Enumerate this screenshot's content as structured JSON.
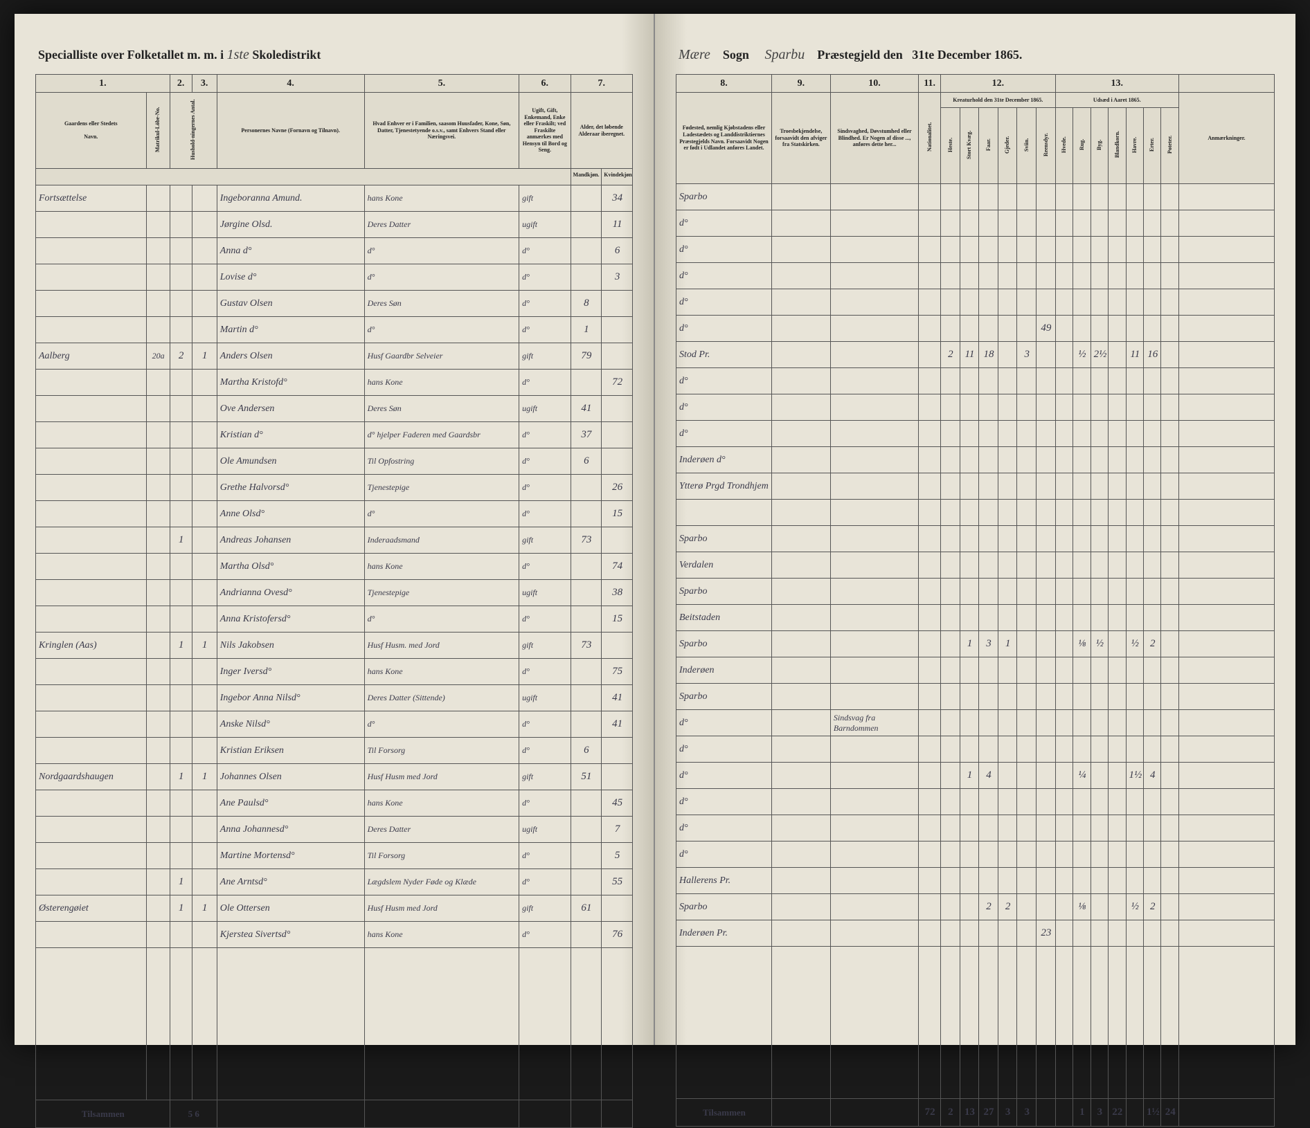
{
  "header": {
    "left_prefix": "Specialliste over Folketallet m. m. i",
    "school_no": "1ste",
    "school_label": "Skoledistrikt",
    "parish_value": "Mære",
    "parish_label": "Sogn",
    "deanery_value": "Sparbu",
    "deanery_label": "Præstegjeld den",
    "date": "31te December 1865."
  },
  "left_cols": {
    "c1": "1.",
    "c2": "2.",
    "c3": "3.",
    "c4": "4.",
    "c5": "5.",
    "c6": "6.",
    "c7": "7."
  },
  "right_cols": {
    "c8": "8.",
    "c9": "9.",
    "c10": "10.",
    "c11": "11.",
    "c12": "12.",
    "c13": "13."
  },
  "left_sub": {
    "farm": "Gaardens eller Stedets",
    "navn": "Navn.",
    "matr": "Matrikul-Löbe-No.",
    "hus": "Hushold-ningernes Antal.",
    "pers": "Personernes Navne (Fornavn og Tilnavn).",
    "stand": "Hvad Enhver er i Familien, saasom Huusfader, Kone, Søn, Datter, Tjenestetyende o.s.v., samt Enhvers Stand eller Næringsvei.",
    "civil": "Ugift, Gift, Enkemand, Enke eller Fraskilt; ved Fraskilte anmærkes med Hensyn til Bord og Seng.",
    "age": "Alder, det løbende Alderaar iberegnet.",
    "male": "Mandkjøn.",
    "female": "Kvindekjøn."
  },
  "right_sub": {
    "birthplace": "Fødested, nemlig Kjøbstadens eller Ladestædets og Landdistriktiernes Præstegjelds Navn. Forsaavidt Nogen er født i Udlandet anføres Landet.",
    "faith": "Troesbekjendelse, forsaavidt den afviger fra Statskirken.",
    "disability": "Sindsvaghed, Døvstumhed eller Blindhed. Er Nogen af disse ..., anføres dette her...",
    "nation": "Nationalitet.",
    "creatures": "Kreaturhold den 31te December 1865.",
    "sowing": "Udsæd i Aaret 1865.",
    "remarks": "Anmærkninger.",
    "heste": "Heste.",
    "stort": "Stort Kvæg.",
    "faar": "Faar.",
    "gjed": "Gjeder.",
    "svin": "Sviin.",
    "ren": "Reensdyr.",
    "hvede": "Hvede.",
    "rug": "Rug.",
    "byg": "Byg.",
    "bland": "Blandkorn.",
    "havre": "Havre.",
    "erter": "Erter.",
    "poteter": "Poteter."
  },
  "rows": [
    {
      "farm": "Fortsættelse",
      "m": "",
      "h": "",
      "name": "Ingeboranna Amund.",
      "rel": "hans Kone",
      "civ": "gift",
      "ma": "",
      "fa": "34",
      "bp": "Sparbo",
      "cr": [
        "",
        "",
        "",
        "",
        "",
        ""
      ],
      "sw": [
        "",
        "",
        "",
        "",
        "",
        "",
        ""
      ]
    },
    {
      "farm": "",
      "m": "",
      "h": "",
      "name": "Jørgine Olsd.",
      "rel": "Deres Datter",
      "civ": "ugift",
      "ma": "",
      "fa": "11",
      "bp": "d°",
      "cr": [
        "",
        "",
        "",
        "",
        "",
        ""
      ],
      "sw": [
        "",
        "",
        "",
        "",
        "",
        "",
        ""
      ]
    },
    {
      "farm": "",
      "m": "",
      "h": "",
      "name": "Anna d°",
      "rel": "d°",
      "civ": "d°",
      "ma": "",
      "fa": "6",
      "bp": "d°",
      "cr": [
        "",
        "",
        "",
        "",
        "",
        ""
      ],
      "sw": [
        "",
        "",
        "",
        "",
        "",
        "",
        ""
      ]
    },
    {
      "farm": "",
      "m": "",
      "h": "",
      "name": "Lovise d°",
      "rel": "d°",
      "civ": "d°",
      "ma": "",
      "fa": "3",
      "bp": "d°",
      "cr": [
        "",
        "",
        "",
        "",
        "",
        ""
      ],
      "sw": [
        "",
        "",
        "",
        "",
        "",
        "",
        ""
      ]
    },
    {
      "farm": "",
      "m": "",
      "h": "",
      "name": "Gustav Olsen",
      "rel": "Deres Søn",
      "civ": "d°",
      "ma": "8",
      "fa": "",
      "bp": "d°",
      "cr": [
        "",
        "",
        "",
        "",
        "",
        ""
      ],
      "sw": [
        "",
        "",
        "",
        "",
        "",
        "",
        ""
      ]
    },
    {
      "farm": "",
      "m": "",
      "h": "",
      "name": "Martin d°",
      "rel": "d°",
      "civ": "d°",
      "ma": "1",
      "fa": "",
      "bp": "d°",
      "cr": [
        "",
        "",
        "",
        "",
        "",
        "49"
      ],
      "sw": [
        "",
        "",
        "",
        "",
        "",
        "",
        ""
      ]
    },
    {
      "farm": "Aalberg",
      "m": "20a",
      "h": "2 1",
      "name": "Anders Olsen",
      "rel": "Husf Gaardbr Selveier",
      "civ": "gift",
      "ma": "79",
      "fa": "",
      "bp": "Stod Pr.",
      "cr": [
        "2",
        "11",
        "18",
        "",
        "3",
        ""
      ],
      "sw": [
        "",
        "½",
        "2½",
        "",
        "11",
        "16",
        ""
      ]
    },
    {
      "farm": "",
      "m": "",
      "h": "",
      "name": "Martha Kristofd°",
      "rel": "hans Kone",
      "civ": "d°",
      "ma": "",
      "fa": "72",
      "bp": "d°",
      "cr": [
        "",
        "",
        "",
        "",
        "",
        ""
      ],
      "sw": [
        "",
        "",
        "",
        "",
        "",
        "",
        ""
      ]
    },
    {
      "farm": "",
      "m": "",
      "h": "",
      "name": "Ove Andersen",
      "rel": "Deres Søn",
      "civ": "ugift",
      "ma": "41",
      "fa": "",
      "bp": "d°",
      "cr": [
        "",
        "",
        "",
        "",
        "",
        ""
      ],
      "sw": [
        "",
        "",
        "",
        "",
        "",
        "",
        ""
      ]
    },
    {
      "farm": "",
      "m": "",
      "h": "",
      "name": "Kristian d°",
      "rel": "d° hjelper Faderen med Gaardsbr",
      "civ": "d°",
      "ma": "37",
      "fa": "",
      "bp": "d°",
      "cr": [
        "",
        "",
        "",
        "",
        "",
        ""
      ],
      "sw": [
        "",
        "",
        "",
        "",
        "",
        "",
        ""
      ]
    },
    {
      "farm": "",
      "m": "",
      "h": "",
      "name": "Ole Amundsen",
      "rel": "Til Opfostring",
      "civ": "d°",
      "ma": "6",
      "fa": "",
      "bp": "Inderøen d°",
      "cr": [
        "",
        "",
        "",
        "",
        "",
        ""
      ],
      "sw": [
        "",
        "",
        "",
        "",
        "",
        "",
        ""
      ]
    },
    {
      "farm": "",
      "m": "",
      "h": "",
      "name": "Grethe Halvorsd°",
      "rel": "Tjenestepige",
      "civ": "d°",
      "ma": "",
      "fa": "26",
      "bp": "Ytterø Prgd Trondhjem",
      "cr": [
        "",
        "",
        "",
        "",
        "",
        ""
      ],
      "sw": [
        "",
        "",
        "",
        "",
        "",
        "",
        ""
      ]
    },
    {
      "farm": "",
      "m": "",
      "h": "",
      "name": "Anne Olsd°",
      "rel": "d°",
      "civ": "d°",
      "ma": "",
      "fa": "15",
      "bp": "",
      "cr": [
        "",
        "",
        "",
        "",
        "",
        ""
      ],
      "sw": [
        "",
        "",
        "",
        "",
        "",
        "",
        ""
      ]
    },
    {
      "farm": "",
      "m": "",
      "h": "1",
      "name": "Andreas Johansen",
      "rel": "Inderaadsmand",
      "civ": "gift",
      "ma": "73",
      "fa": "",
      "bp": "Sparbo",
      "cr": [
        "",
        "",
        "",
        "",
        "",
        ""
      ],
      "sw": [
        "",
        "",
        "",
        "",
        "",
        "",
        ""
      ]
    },
    {
      "farm": "",
      "m": "",
      "h": "",
      "name": "Martha Olsd°",
      "rel": "hans Kone",
      "civ": "d°",
      "ma": "",
      "fa": "74",
      "bp": "Verdalen",
      "cr": [
        "",
        "",
        "",
        "",
        "",
        ""
      ],
      "sw": [
        "",
        "",
        "",
        "",
        "",
        "",
        ""
      ]
    },
    {
      "farm": "",
      "m": "",
      "h": "",
      "name": "Andrianna Ovesd°",
      "rel": "Tjenestepige",
      "civ": "ugift",
      "ma": "",
      "fa": "38",
      "bp": "Sparbo",
      "cr": [
        "",
        "",
        "",
        "",
        "",
        ""
      ],
      "sw": [
        "",
        "",
        "",
        "",
        "",
        "",
        ""
      ]
    },
    {
      "farm": "",
      "m": "",
      "h": "",
      "name": "Anna Kristofersd°",
      "rel": "d°",
      "civ": "d°",
      "ma": "",
      "fa": "15",
      "bp": "Beitstaden",
      "cr": [
        "",
        "",
        "",
        "",
        "",
        ""
      ],
      "sw": [
        "",
        "",
        "",
        "",
        "",
        "",
        ""
      ]
    },
    {
      "farm": "Kringlen (Aas)",
      "m": "",
      "h": "1 1",
      "name": "Nils Jakobsen",
      "rel": "Husf Husm. med Jord",
      "civ": "gift",
      "ma": "73",
      "fa": "",
      "bp": "Sparbo",
      "cr": [
        "",
        "1",
        "3",
        "1",
        "",
        ""
      ],
      "sw": [
        "",
        "⅛",
        "½",
        "",
        "½",
        "2",
        ""
      ]
    },
    {
      "farm": "",
      "m": "",
      "h": "",
      "name": "Inger Iversd°",
      "rel": "hans Kone",
      "civ": "d°",
      "ma": "",
      "fa": "75",
      "bp": "Inderøen",
      "cr": [
        "",
        "",
        "",
        "",
        "",
        ""
      ],
      "sw": [
        "",
        "",
        "",
        "",
        "",
        "",
        ""
      ]
    },
    {
      "farm": "",
      "m": "",
      "h": "",
      "name": "Ingebor Anna Nilsd°",
      "rel": "Deres Datter (Sittende)",
      "civ": "ugift",
      "ma": "",
      "fa": "41",
      "bp": "Sparbo",
      "cr": [
        "",
        "",
        "",
        "",
        "",
        ""
      ],
      "sw": [
        "",
        "",
        "",
        "",
        "",
        "",
        ""
      ]
    },
    {
      "farm": "",
      "m": "",
      "h": "",
      "name": "Anske Nilsd°",
      "rel": "d°",
      "civ": "d°",
      "ma": "",
      "fa": "41",
      "bp": "d°",
      "cr": [
        "",
        "",
        "",
        "",
        "",
        ""
      ],
      "sw": [
        "",
        "",
        "",
        "",
        "",
        "",
        ""
      ],
      "rem": "Sindsvag fra Barndommen"
    },
    {
      "farm": "",
      "m": "",
      "h": "",
      "name": "Kristian Eriksen",
      "rel": "Til Forsorg",
      "civ": "d°",
      "ma": "6",
      "fa": "",
      "bp": "d°",
      "cr": [
        "",
        "",
        "",
        "",
        "",
        ""
      ],
      "sw": [
        "",
        "",
        "",
        "",
        "",
        "",
        ""
      ]
    },
    {
      "farm": "Nordgaardshaugen",
      "m": "",
      "h": "1 1",
      "name": "Johannes Olsen",
      "rel": "Husf Husm med Jord",
      "civ": "gift",
      "ma": "51",
      "fa": "",
      "bp": "d°",
      "cr": [
        "",
        "1",
        "4",
        "",
        "",
        ""
      ],
      "sw": [
        "",
        "¼",
        "",
        "",
        "1½",
        "4",
        ""
      ]
    },
    {
      "farm": "",
      "m": "",
      "h": "",
      "name": "Ane Paulsd°",
      "rel": "hans Kone",
      "civ": "d°",
      "ma": "",
      "fa": "45",
      "bp": "d°",
      "cr": [
        "",
        "",
        "",
        "",
        "",
        ""
      ],
      "sw": [
        "",
        "",
        "",
        "",
        "",
        "",
        ""
      ]
    },
    {
      "farm": "",
      "m": "",
      "h": "",
      "name": "Anna Johannesd°",
      "rel": "Deres Datter",
      "civ": "ugift",
      "ma": "",
      "fa": "7",
      "bp": "d°",
      "cr": [
        "",
        "",
        "",
        "",
        "",
        ""
      ],
      "sw": [
        "",
        "",
        "",
        "",
        "",
        "",
        ""
      ]
    },
    {
      "farm": "",
      "m": "",
      "h": "",
      "name": "Martine Mortensd°",
      "rel": "Til Forsorg",
      "civ": "d°",
      "ma": "",
      "fa": "5",
      "bp": "d°",
      "cr": [
        "",
        "",
        "",
        "",
        "",
        ""
      ],
      "sw": [
        "",
        "",
        "",
        "",
        "",
        "",
        ""
      ]
    },
    {
      "farm": "",
      "m": "",
      "h": "1",
      "name": "Ane Arntsd°",
      "rel": "Lægdslem Nyder Føde og Klæde",
      "civ": "d°",
      "ma": "",
      "fa": "55",
      "bp": "Hallerens Pr.",
      "cr": [
        "",
        "",
        "",
        "",
        "",
        ""
      ],
      "sw": [
        "",
        "",
        "",
        "",
        "",
        "",
        ""
      ]
    },
    {
      "farm": "Østerengøiet",
      "m": "",
      "h": "1 1",
      "name": "Ole Ottersen",
      "rel": "Husf Husm med Jord",
      "civ": "gift",
      "ma": "61",
      "fa": "",
      "bp": "Sparbo",
      "cr": [
        "",
        "",
        "2",
        "2",
        "",
        ""
      ],
      "sw": [
        "",
        "⅛",
        "",
        "",
        "½",
        "2",
        ""
      ]
    },
    {
      "farm": "",
      "m": "",
      "h": "",
      "name": "Kjerstea Sivertsd°",
      "rel": "hans Kone",
      "civ": "d°",
      "ma": "",
      "fa": "76",
      "bp": "Inderøen Pr.",
      "cr": [
        "",
        "",
        "",
        "",
        "",
        "23"
      ],
      "sw": [
        "",
        "",
        "",
        "",
        "",
        "",
        ""
      ]
    }
  ],
  "footer": {
    "label": "Tilsammen",
    "left_h": "5 6",
    "right": [
      "72",
      "2",
      "13",
      "27",
      "3",
      "3",
      "",
      "",
      "1",
      "3",
      "22",
      "",
      "1½",
      "24"
    ]
  }
}
